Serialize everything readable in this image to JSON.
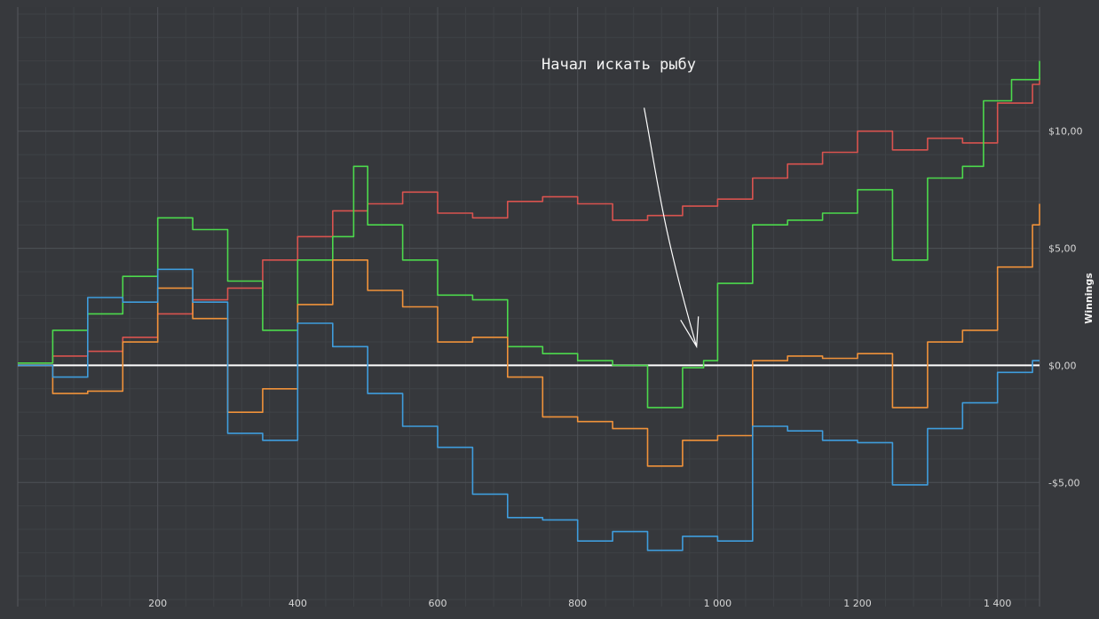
{
  "chart_data": {
    "type": "line",
    "ylabel": "Winnings",
    "xlim": [
      0,
      1460
    ],
    "ylim": [
      -10.3,
      15.3
    ],
    "x_ticks": [
      200,
      400,
      600,
      800,
      1000,
      1200,
      1400
    ],
    "x_tick_labels": [
      "200",
      "400",
      "600",
      "800",
      "1 000",
      "1 200",
      "1 400"
    ],
    "y_ticks": [
      10,
      5,
      0,
      -5
    ],
    "y_tick_labels": [
      "$10,00",
      "$5,00",
      "$0,00",
      "-$5,00"
    ],
    "grid": true,
    "zero_line_color": "#ffffff",
    "annotation": {
      "text": "Начал искать рыбу",
      "arrow_from": [
        895,
        11.0
      ],
      "arrow_to": [
        970,
        0.8
      ]
    },
    "series": [
      {
        "color": "#d9534f",
        "x": [
          0,
          50,
          100,
          150,
          200,
          250,
          300,
          350,
          400,
          450,
          500,
          550,
          600,
          650,
          700,
          750,
          800,
          850,
          900,
          950,
          1000,
          1050,
          1100,
          1150,
          1200,
          1250,
          1300,
          1350,
          1400,
          1450,
          1460
        ],
        "y": [
          0.1,
          0.4,
          0.6,
          1.2,
          2.2,
          2.8,
          3.3,
          4.5,
          5.5,
          6.6,
          6.9,
          7.4,
          6.5,
          6.3,
          7.0,
          7.2,
          6.9,
          6.2,
          6.4,
          6.8,
          7.1,
          8.0,
          8.6,
          9.1,
          10.0,
          9.2,
          9.7,
          9.5,
          11.2,
          12.0,
          12.3
        ]
      },
      {
        "color": "#4cd94c",
        "x": [
          0,
          50,
          100,
          150,
          200,
          250,
          300,
          350,
          400,
          450,
          480,
          500,
          550,
          600,
          650,
          700,
          750,
          800,
          850,
          900,
          950,
          980,
          1000,
          1050,
          1100,
          1150,
          1200,
          1250,
          1300,
          1350,
          1380,
          1420,
          1460
        ],
        "y": [
          0.1,
          1.5,
          2.2,
          3.8,
          6.3,
          5.8,
          3.6,
          1.5,
          4.5,
          5.5,
          8.5,
          6.0,
          4.5,
          3.0,
          2.8,
          0.8,
          0.5,
          0.2,
          0.0,
          -1.8,
          -0.1,
          0.2,
          3.5,
          6.0,
          6.2,
          6.5,
          7.5,
          4.5,
          8.0,
          8.5,
          11.3,
          12.2,
          13.0
        ]
      },
      {
        "color": "#f0923a",
        "x": [
          0,
          50,
          100,
          150,
          200,
          250,
          300,
          350,
          400,
          450,
          500,
          550,
          600,
          650,
          700,
          750,
          800,
          850,
          900,
          950,
          1000,
          1050,
          1100,
          1150,
          1200,
          1250,
          1300,
          1350,
          1400,
          1450,
          1460
        ],
        "y": [
          0.0,
          -1.2,
          -1.1,
          1.0,
          3.3,
          2.0,
          -2.0,
          -1.0,
          2.6,
          4.5,
          3.2,
          2.5,
          1.0,
          1.2,
          -0.5,
          -2.2,
          -2.4,
          -2.7,
          -4.3,
          -3.2,
          -3.0,
          0.2,
          0.4,
          0.3,
          0.5,
          -1.8,
          1.0,
          1.5,
          4.2,
          6.0,
          6.9
        ]
      },
      {
        "color": "#3f9ddd",
        "x": [
          0,
          50,
          100,
          150,
          200,
          250,
          300,
          350,
          400,
          450,
          500,
          550,
          600,
          650,
          700,
          750,
          800,
          850,
          900,
          950,
          1000,
          1050,
          1100,
          1150,
          1200,
          1250,
          1300,
          1350,
          1400,
          1450,
          1460
        ],
        "y": [
          0.0,
          -0.5,
          2.9,
          2.7,
          4.1,
          2.7,
          -2.9,
          -3.2,
          1.8,
          0.8,
          -1.2,
          -2.6,
          -3.5,
          -5.5,
          -6.5,
          -6.6,
          -7.5,
          -7.1,
          -7.9,
          -7.3,
          -7.5,
          -2.6,
          -2.8,
          -3.2,
          -3.3,
          -5.1,
          -2.7,
          -1.6,
          -0.3,
          0.2,
          0.2
        ]
      }
    ]
  }
}
